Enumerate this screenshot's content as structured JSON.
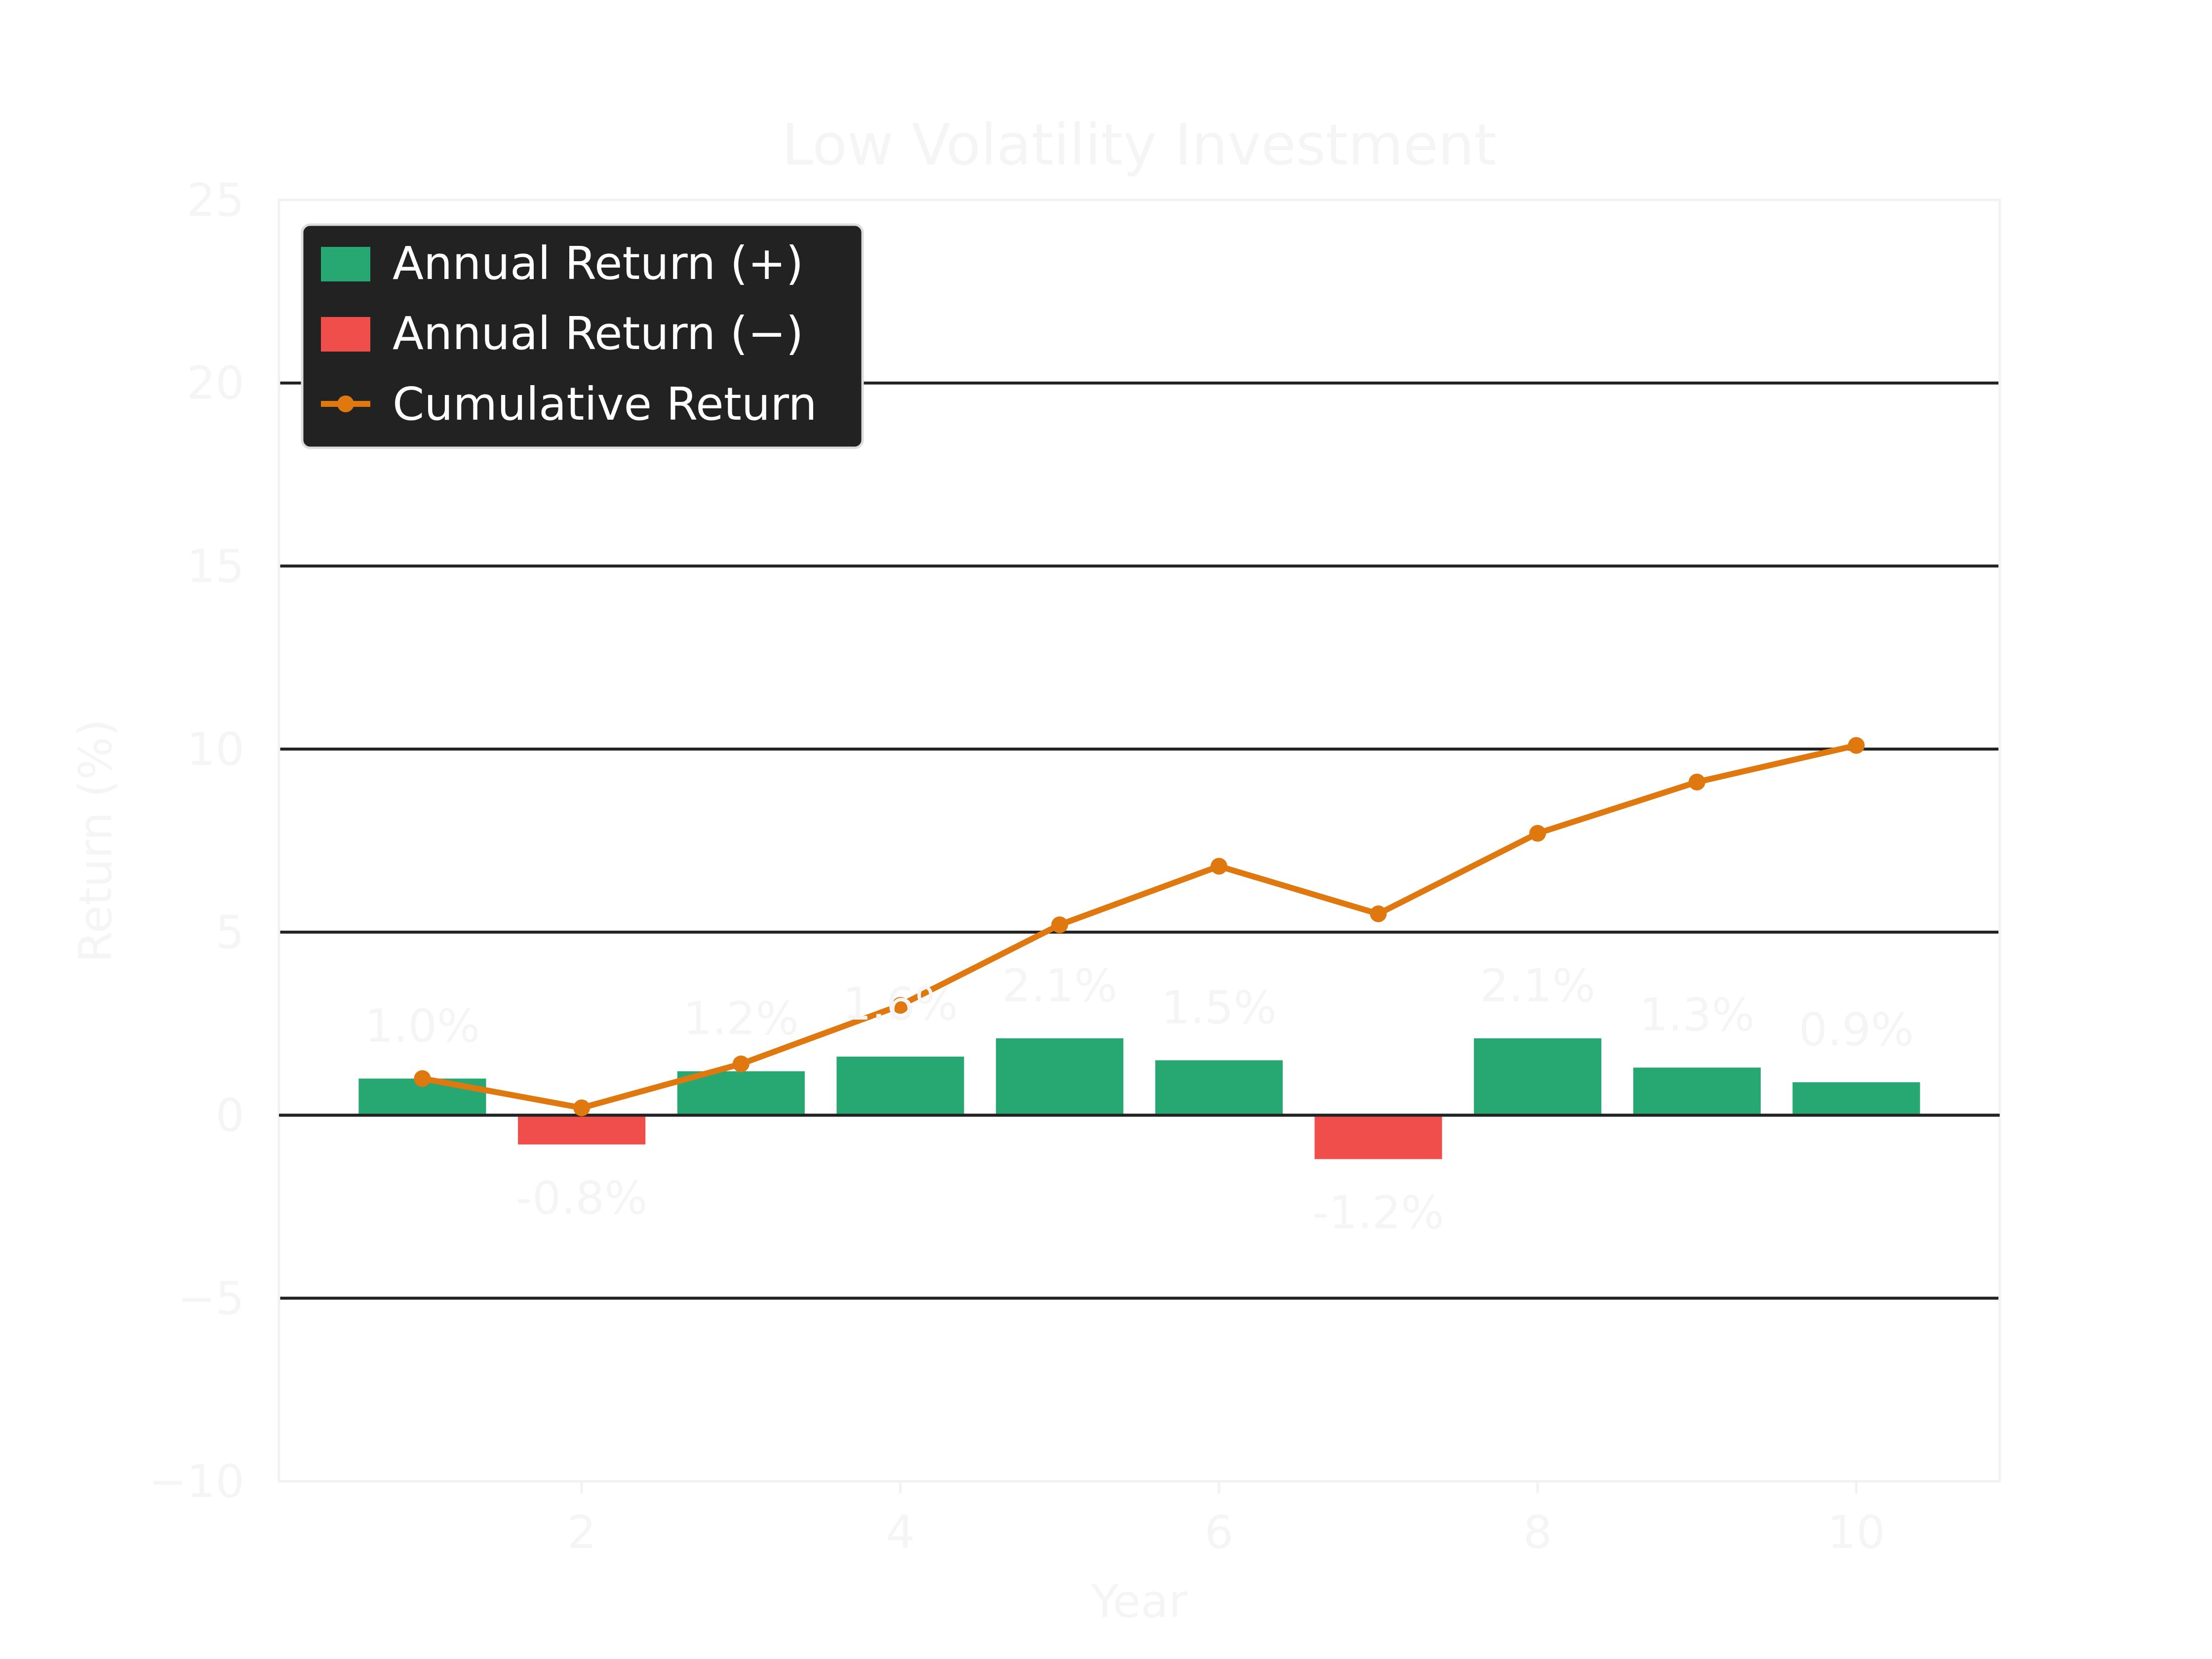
{
  "chart_data": {
    "type": "bar",
    "title": "Low Volatility Investment",
    "xlabel": "Year",
    "ylabel": "Return (%)",
    "xlim": [
      0.1,
      10.9
    ],
    "ylim": [
      -10,
      25
    ],
    "xticks": [
      2,
      4,
      6,
      8,
      10
    ],
    "yticks": [
      -10,
      -5,
      0,
      5,
      10,
      15,
      20,
      25
    ],
    "x": [
      1,
      2,
      3,
      4,
      5,
      6,
      7,
      8,
      9,
      10
    ],
    "series": [
      {
        "name": "Annual Return",
        "type": "bar",
        "values": [
          1.0,
          -0.8,
          1.2,
          1.6,
          2.1,
          1.5,
          -1.2,
          2.1,
          1.3,
          0.9
        ],
        "labels": [
          "1.0%",
          "-0.8%",
          "1.2%",
          "1.6%",
          "2.1%",
          "1.5%",
          "-1.2%",
          "2.1%",
          "1.3%",
          "0.9%"
        ]
      },
      {
        "name": "Cumulative Return",
        "type": "line",
        "values": [
          1.0,
          0.2,
          1.4,
          3.0,
          5.2,
          6.8,
          5.5,
          7.7,
          9.1,
          10.1
        ]
      }
    ],
    "grid": true,
    "legend": {
      "position": "top-left",
      "entries": [
        "Annual Return (+)",
        "Annual Return (−)",
        "Cumulative Return"
      ]
    },
    "colors": {
      "positive": "#27a872",
      "negative": "#f04e4b",
      "line": "#e07810",
      "grid": "#222222",
      "faint_text": "#f5f5f5",
      "legend_bg": "#222222"
    }
  }
}
